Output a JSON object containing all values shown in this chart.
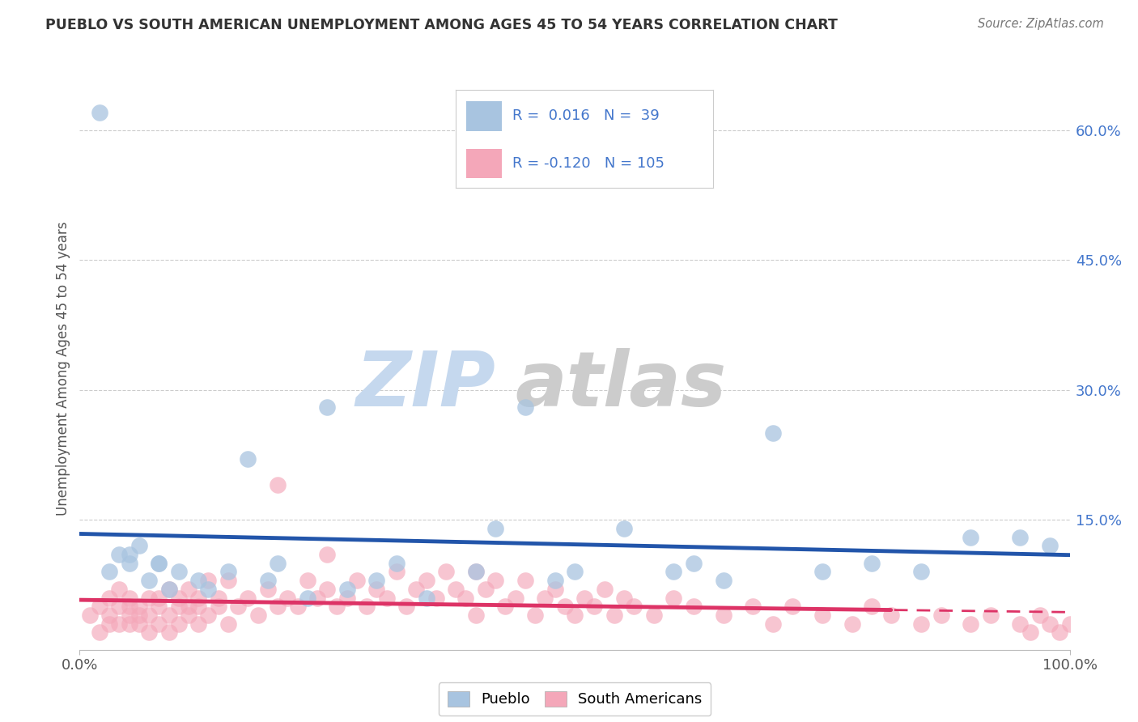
{
  "title": "PUEBLO VS SOUTH AMERICAN UNEMPLOYMENT AMONG AGES 45 TO 54 YEARS CORRELATION CHART",
  "source": "Source: ZipAtlas.com",
  "ylabel": "Unemployment Among Ages 45 to 54 years",
  "xlim": [
    0,
    1.0
  ],
  "ylim": [
    0,
    0.65
  ],
  "ytick_positions": [
    0.15,
    0.3,
    0.45,
    0.6
  ],
  "ytick_labels": [
    "15.0%",
    "30.0%",
    "45.0%",
    "60.0%"
  ],
  "pueblo_R": 0.016,
  "pueblo_N": 39,
  "south_R": -0.12,
  "south_N": 105,
  "pueblo_color": "#a8c4e0",
  "pueblo_line_color": "#2255aa",
  "south_color": "#f4a7b9",
  "south_line_color": "#dd3366",
  "pueblo_scatter_x": [
    0.02,
    0.04,
    0.05,
    0.06,
    0.07,
    0.08,
    0.03,
    0.05,
    0.08,
    0.09,
    0.1,
    0.12,
    0.13,
    0.15,
    0.17,
    0.19,
    0.2,
    0.23,
    0.25,
    0.27,
    0.3,
    0.32,
    0.35,
    0.4,
    0.42,
    0.45,
    0.48,
    0.5,
    0.55,
    0.6,
    0.62,
    0.65,
    0.7,
    0.75,
    0.8,
    0.85,
    0.9,
    0.95,
    0.98
  ],
  "pueblo_scatter_y": [
    0.62,
    0.11,
    0.1,
    0.12,
    0.08,
    0.1,
    0.09,
    0.11,
    0.1,
    0.07,
    0.09,
    0.08,
    0.07,
    0.09,
    0.22,
    0.08,
    0.1,
    0.06,
    0.28,
    0.07,
    0.08,
    0.1,
    0.06,
    0.09,
    0.14,
    0.28,
    0.08,
    0.09,
    0.14,
    0.09,
    0.1,
    0.08,
    0.25,
    0.09,
    0.1,
    0.09,
    0.13,
    0.13,
    0.12
  ],
  "south_scatter_x": [
    0.01,
    0.02,
    0.02,
    0.03,
    0.03,
    0.03,
    0.04,
    0.04,
    0.04,
    0.05,
    0.05,
    0.05,
    0.05,
    0.06,
    0.06,
    0.06,
    0.07,
    0.07,
    0.07,
    0.08,
    0.08,
    0.08,
    0.09,
    0.09,
    0.09,
    0.1,
    0.1,
    0.1,
    0.11,
    0.11,
    0.11,
    0.12,
    0.12,
    0.12,
    0.13,
    0.13,
    0.14,
    0.14,
    0.15,
    0.15,
    0.16,
    0.17,
    0.18,
    0.19,
    0.2,
    0.2,
    0.21,
    0.22,
    0.23,
    0.24,
    0.25,
    0.25,
    0.26,
    0.27,
    0.28,
    0.29,
    0.3,
    0.31,
    0.32,
    0.33,
    0.34,
    0.35,
    0.36,
    0.37,
    0.38,
    0.39,
    0.4,
    0.4,
    0.41,
    0.42,
    0.43,
    0.44,
    0.45,
    0.46,
    0.47,
    0.48,
    0.49,
    0.5,
    0.51,
    0.52,
    0.53,
    0.54,
    0.55,
    0.56,
    0.58,
    0.6,
    0.62,
    0.65,
    0.68,
    0.7,
    0.72,
    0.75,
    0.78,
    0.8,
    0.82,
    0.85,
    0.87,
    0.9,
    0.92,
    0.95,
    0.96,
    0.97,
    0.98,
    0.99,
    1.0
  ],
  "south_scatter_y": [
    0.04,
    0.05,
    0.02,
    0.04,
    0.06,
    0.03,
    0.05,
    0.03,
    0.07,
    0.04,
    0.05,
    0.03,
    0.06,
    0.04,
    0.05,
    0.03,
    0.06,
    0.04,
    0.02,
    0.05,
    0.06,
    0.03,
    0.04,
    0.07,
    0.02,
    0.05,
    0.06,
    0.03,
    0.04,
    0.05,
    0.07,
    0.03,
    0.05,
    0.06,
    0.04,
    0.08,
    0.05,
    0.06,
    0.03,
    0.08,
    0.05,
    0.06,
    0.04,
    0.07,
    0.19,
    0.05,
    0.06,
    0.05,
    0.08,
    0.06,
    0.07,
    0.11,
    0.05,
    0.06,
    0.08,
    0.05,
    0.07,
    0.06,
    0.09,
    0.05,
    0.07,
    0.08,
    0.06,
    0.09,
    0.07,
    0.06,
    0.09,
    0.04,
    0.07,
    0.08,
    0.05,
    0.06,
    0.08,
    0.04,
    0.06,
    0.07,
    0.05,
    0.04,
    0.06,
    0.05,
    0.07,
    0.04,
    0.06,
    0.05,
    0.04,
    0.06,
    0.05,
    0.04,
    0.05,
    0.03,
    0.05,
    0.04,
    0.03,
    0.05,
    0.04,
    0.03,
    0.04,
    0.03,
    0.04,
    0.03,
    0.02,
    0.04,
    0.03,
    0.02,
    0.03
  ],
  "background_color": "#ffffff",
  "grid_color": "#cccccc",
  "trend_line_dashed_cutoff": 0.82
}
